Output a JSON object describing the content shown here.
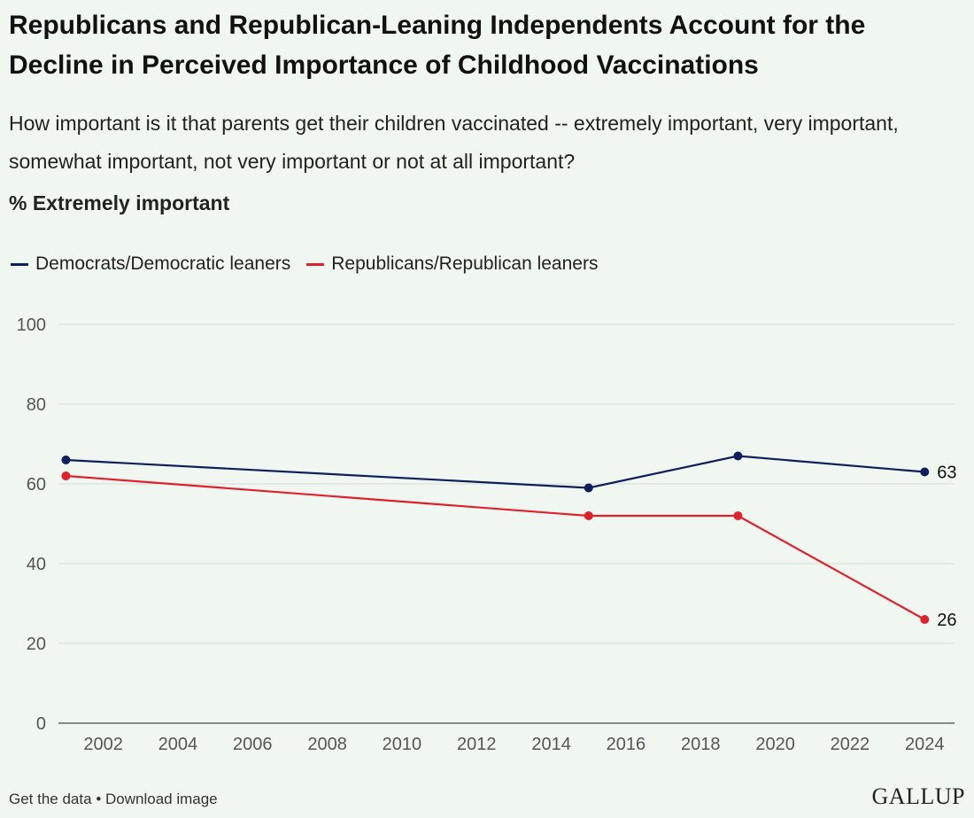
{
  "title": "Republicans and Republican-Leaning Independents Account for the Decline in Perceived Importance of Childhood Vaccinations",
  "subtitle": "How important is it that parents get their children vaccinated -- extremely important, very important, somewhat important, not very important or not at all important?",
  "unit_label": "% Extremely important",
  "footer": {
    "get_data": "Get the data",
    "separator": "•",
    "download": "Download image",
    "logo": "GALLUP"
  },
  "colors": {
    "background": "#f0f7f1",
    "democrats": "#0d1f5c",
    "republicans": "#e0202d",
    "grid": "#d3ddd5"
  },
  "chart_data": {
    "type": "line",
    "x_ticks": [
      2002,
      2004,
      2006,
      2008,
      2010,
      2012,
      2014,
      2016,
      2018,
      2020,
      2022,
      2024
    ],
    "y_ticks": [
      0,
      20,
      40,
      60,
      80,
      100
    ],
    "xlim": [
      2000.8,
      2024.8
    ],
    "ylim": [
      0,
      100
    ],
    "grid": true,
    "legend_position": "top-left",
    "series": [
      {
        "name": "Democrats/Democratic leaners",
        "color": "#0d1f5c",
        "x": [
          2001,
          2015,
          2019,
          2024
        ],
        "y": [
          66,
          59,
          67,
          63
        ],
        "end_label": "63"
      },
      {
        "name": "Republicans/Republican leaners",
        "color": "#e0202d",
        "x": [
          2001,
          2015,
          2019,
          2024
        ],
        "y": [
          62,
          52,
          52,
          26
        ],
        "end_label": "26"
      }
    ]
  }
}
